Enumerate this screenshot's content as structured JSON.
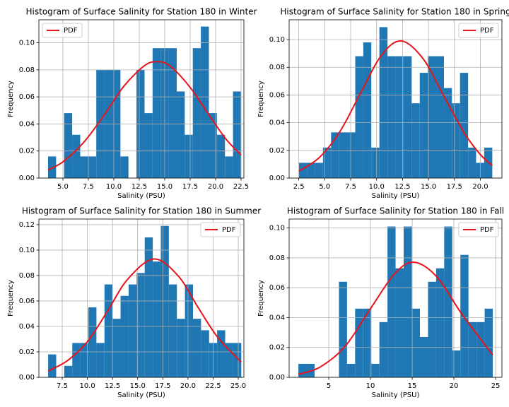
{
  "chart_data": [
    {
      "type": "histogram",
      "title": "Histogram of Surface Salinity for Station 180 in Winter",
      "xlabel": "Salinity (PSU)",
      "ylabel": "Frequency",
      "bins": [
        3.54,
        4.33,
        5.12,
        5.91,
        6.7,
        7.49,
        8.28,
        9.07,
        9.86,
        10.65,
        11.44,
        12.23,
        13.02,
        13.81,
        14.6,
        15.39,
        16.18,
        16.97,
        17.76,
        18.55,
        19.34,
        20.13,
        20.92,
        21.71,
        22.5
      ],
      "values": [
        0.016,
        0,
        0.048,
        0.032,
        0.016,
        0.016,
        0.08,
        0.08,
        0.08,
        0.016,
        0,
        0.08,
        0.048,
        0.096,
        0.096,
        0.096,
        0.064,
        0.032,
        0.096,
        0.112,
        0.048,
        0.032,
        0.016,
        0.064
      ],
      "color": "#1f77b4",
      "overlay": {
        "name": "PDF",
        "color": "#e8141c",
        "x": [
          3.54,
          5,
          7,
          9,
          11,
          13,
          14.2,
          15.5,
          17.5,
          19.5,
          21,
          22.5
        ],
        "values": [
          0.006,
          0.012,
          0.026,
          0.046,
          0.068,
          0.083,
          0.086,
          0.083,
          0.067,
          0.045,
          0.029,
          0.017
        ]
      },
      "xlim": [
        2.64,
        22.78
      ],
      "ylim": [
        0,
        0.117
      ],
      "xticks": [
        {
          "value": 5,
          "label": "5.0"
        },
        {
          "value": 7.5,
          "label": "7.5"
        },
        {
          "value": 10,
          "label": "10.0"
        },
        {
          "value": 12.5,
          "label": "12.5"
        },
        {
          "value": 15,
          "label": "15.0"
        },
        {
          "value": 17.5,
          "label": "17.5"
        },
        {
          "value": 20,
          "label": "20.0"
        },
        {
          "value": 22.5,
          "label": "22.5"
        }
      ],
      "yticks": [
        {
          "value": 0,
          "label": "0.00"
        },
        {
          "value": 0.02,
          "label": "0.02"
        },
        {
          "value": 0.04,
          "label": "0.04"
        },
        {
          "value": 0.06,
          "label": "0.06"
        },
        {
          "value": 0.08,
          "label": "0.08"
        },
        {
          "value": 0.1,
          "label": "0.10"
        }
      ],
      "grid": true,
      "legend": "upper left"
    },
    {
      "type": "histogram",
      "title": "Histogram of Surface Salinity for Station 180 in Spring",
      "xlabel": "Salinity (PSU)",
      "ylabel": "Frequency",
      "bins": [
        2.5,
        3.28,
        4.05,
        4.83,
        5.61,
        6.39,
        7.16,
        7.94,
        8.72,
        9.49,
        10.27,
        11.05,
        11.82,
        12.6,
        13.38,
        14.16,
        14.93,
        15.71,
        16.49,
        17.26,
        18.04,
        18.82,
        19.59,
        20.37,
        21.15
      ],
      "values": [
        0.011,
        0.011,
        0.011,
        0.022,
        0.033,
        0.033,
        0.033,
        0.088,
        0.098,
        0.022,
        0.109,
        0.088,
        0.088,
        0.088,
        0.054,
        0.076,
        0.088,
        0.088,
        0.065,
        0.054,
        0.076,
        0.022,
        0.011,
        0.022
      ],
      "color": "#1f77b4",
      "overlay": {
        "name": "PDF",
        "color": "#e8141c",
        "x": [
          2.5,
          4.5,
          6.5,
          8.5,
          10.5,
          12.4,
          14.5,
          16.5,
          18.5,
          20,
          21.15
        ],
        "values": [
          0.005,
          0.015,
          0.034,
          0.062,
          0.089,
          0.099,
          0.086,
          0.059,
          0.032,
          0.017,
          0.009
        ]
      },
      "xlim": [
        1.57,
        22.08
      ],
      "ylim": [
        0,
        0.1143
      ],
      "xticks": [
        {
          "value": 2.5,
          "label": "2.5"
        },
        {
          "value": 5,
          "label": "5.0"
        },
        {
          "value": 7.5,
          "label": "7.5"
        },
        {
          "value": 10,
          "label": "10.0"
        },
        {
          "value": 12.5,
          "label": "12.5"
        },
        {
          "value": 15,
          "label": "15.0"
        },
        {
          "value": 17.5,
          "label": "17.5"
        },
        {
          "value": 20,
          "label": "20.0"
        }
      ],
      "yticks": [
        {
          "value": 0,
          "label": "0.00"
        },
        {
          "value": 0.02,
          "label": "0.02"
        },
        {
          "value": 0.04,
          "label": "0.04"
        },
        {
          "value": 0.06,
          "label": "0.06"
        },
        {
          "value": 0.08,
          "label": "0.08"
        },
        {
          "value": 0.1,
          "label": "0.10"
        }
      ],
      "grid": true,
      "legend": "upper right"
    },
    {
      "type": "histogram",
      "title": "Histogram of Surface Salinity for Station 180 in Summer",
      "xlabel": "Salinity (PSU)",
      "ylabel": "Frequency",
      "bins": [
        6.1,
        6.9,
        7.7,
        8.5,
        9.3,
        10.1,
        10.9,
        11.7,
        12.5,
        13.3,
        14.1,
        14.9,
        15.7,
        16.5,
        17.3,
        18.1,
        18.9,
        19.7,
        20.5,
        21.3,
        22.1,
        22.9,
        23.7,
        24.5,
        25.3
      ],
      "values": [
        0.018,
        0,
        0.009,
        0.027,
        0.027,
        0.055,
        0.027,
        0.073,
        0.046,
        0.064,
        0.073,
        0.082,
        0.11,
        0.091,
        0.119,
        0.073,
        0.046,
        0.073,
        0.046,
        0.037,
        0.027,
        0.037,
        0.027,
        0.027
      ],
      "color": "#1f77b4",
      "overlay": {
        "name": "PDF",
        "color": "#e8141c",
        "x": [
          6.1,
          8,
          10,
          12,
          14,
          16.6,
          19,
          21,
          23,
          25.3
        ],
        "values": [
          0.005,
          0.013,
          0.028,
          0.052,
          0.077,
          0.093,
          0.08,
          0.055,
          0.031,
          0.012
        ]
      },
      "xlim": [
        5.18,
        25.56
      ],
      "ylim": [
        0,
        0.1244
      ],
      "xticks": [
        {
          "value": 7.5,
          "label": "7.5"
        },
        {
          "value": 10,
          "label": "10.0"
        },
        {
          "value": 12.5,
          "label": "12.5"
        },
        {
          "value": 15,
          "label": "15.0"
        },
        {
          "value": 17.5,
          "label": "17.5"
        },
        {
          "value": 20,
          "label": "20.0"
        },
        {
          "value": 22.5,
          "label": "22.5"
        },
        {
          "value": 25,
          "label": "25.0"
        }
      ],
      "yticks": [
        {
          "value": 0,
          "label": "0.00"
        },
        {
          "value": 0.02,
          "label": "0.02"
        },
        {
          "value": 0.04,
          "label": "0.04"
        },
        {
          "value": 0.06,
          "label": "0.06"
        },
        {
          "value": 0.08,
          "label": "0.08"
        },
        {
          "value": 0.1,
          "label": "0.10"
        },
        {
          "value": 0.12,
          "label": "0.12"
        }
      ],
      "grid": true,
      "legend": "upper right"
    },
    {
      "type": "histogram",
      "title": "Histogram of Surface Salinity for Station 180 in Fall",
      "xlabel": "Salinity (PSU)",
      "ylabel": "Frequency",
      "bins": [
        1.36,
        2.33,
        3.3,
        4.27,
        5.24,
        6.22,
        7.19,
        8.16,
        9.13,
        10.1,
        11.07,
        12.04,
        13.01,
        13.98,
        14.95,
        15.93,
        16.9,
        17.87,
        18.84,
        19.81,
        20.78,
        21.75,
        22.72,
        23.69,
        24.66
      ],
      "values": [
        0.009,
        0.009,
        0,
        0,
        0,
        0.064,
        0.009,
        0.046,
        0.046,
        0.009,
        0.037,
        0.101,
        0.073,
        0.101,
        0.046,
        0.027,
        0.064,
        0.073,
        0.101,
        0.018,
        0.082,
        0.037,
        0.037,
        0.046
      ],
      "color": "#1f77b4",
      "overlay": {
        "name": "PDF",
        "color": "#e8141c",
        "x": [
          1.36,
          4,
          7,
          10,
          13,
          15.3,
          18,
          21,
          24.66
        ],
        "values": [
          0.002,
          0.007,
          0.021,
          0.046,
          0.07,
          0.077,
          0.067,
          0.042,
          0.015
        ]
      },
      "xlim": [
        0.25,
        25.76
      ],
      "ylim": [
        0,
        0.106
      ],
      "xticks": [
        5,
        10,
        15,
        20,
        25
      ],
      "yticks": [
        {
          "value": 0,
          "label": "0.00"
        },
        {
          "value": 0.02,
          "label": "0.02"
        },
        {
          "value": 0.04,
          "label": "0.04"
        },
        {
          "value": 0.06,
          "label": "0.06"
        },
        {
          "value": 0.08,
          "label": "0.08"
        },
        {
          "value": 0.1,
          "label": "0.10"
        }
      ],
      "grid": true,
      "legend": "upper right"
    }
  ]
}
